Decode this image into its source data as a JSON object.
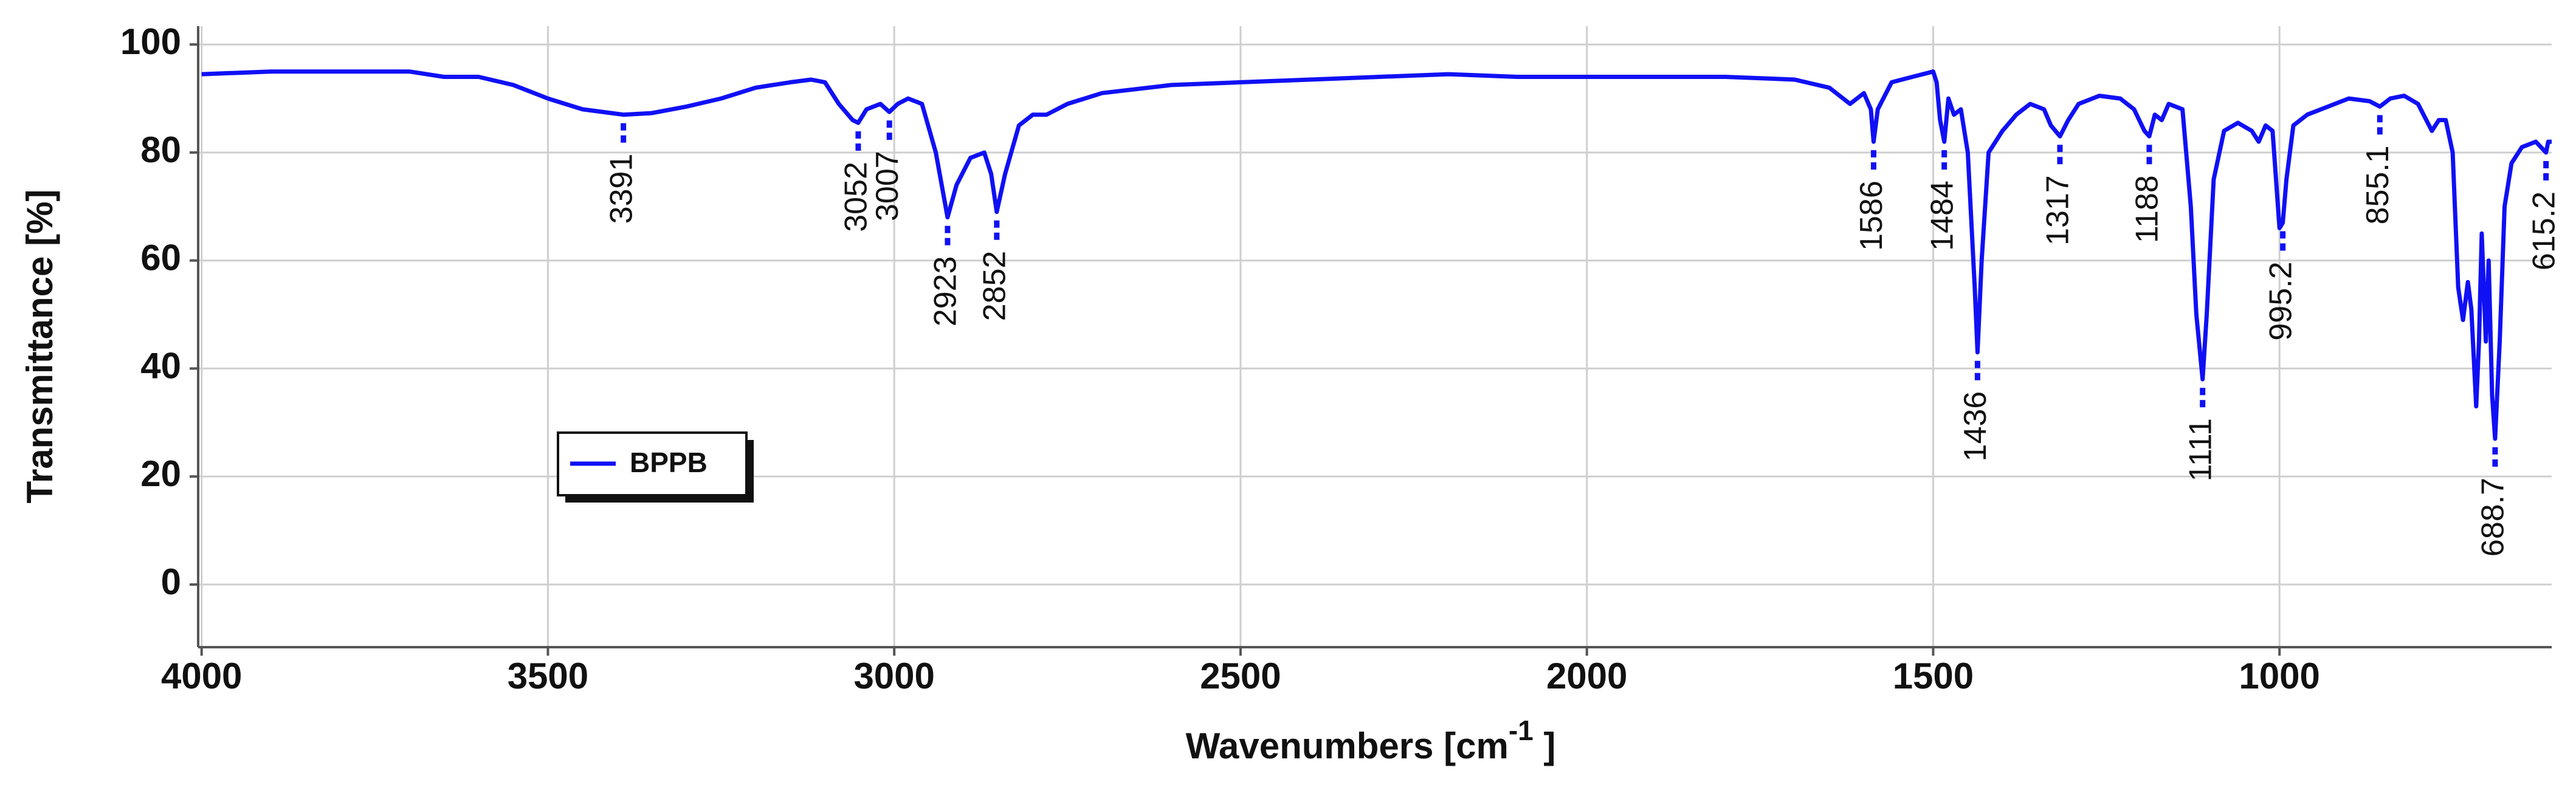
{
  "chart_data": {
    "type": "line",
    "xlabel": {
      "text": "Wavenumbers [cm",
      "sup": "-1",
      "end": " ]"
    },
    "ylabel": "Transmittance [%]",
    "x": [
      4000,
      3900,
      3800,
      3700,
      3650,
      3600,
      3550,
      3500,
      3450,
      3391,
      3350,
      3300,
      3250,
      3200,
      3150,
      3120,
      3100,
      3080,
      3060,
      3052,
      3040,
      3020,
      3007,
      2995,
      2980,
      2960,
      2940,
      2923,
      2910,
      2890,
      2870,
      2860,
      2852,
      2840,
      2820,
      2800,
      2780,
      2750,
      2700,
      2600,
      2500,
      2400,
      2300,
      2200,
      2100,
      2000,
      1900,
      1800,
      1700,
      1650,
      1620,
      1600,
      1590,
      1586,
      1580,
      1560,
      1530,
      1500,
      1495,
      1490,
      1484,
      1478,
      1470,
      1460,
      1450,
      1440,
      1436,
      1430,
      1420,
      1400,
      1380,
      1360,
      1340,
      1330,
      1317,
      1305,
      1290,
      1260,
      1230,
      1210,
      1195,
      1188,
      1180,
      1170,
      1160,
      1140,
      1128,
      1120,
      1111,
      1105,
      1095,
      1080,
      1060,
      1040,
      1030,
      1020,
      1010,
      1000,
      995.2,
      990,
      980,
      960,
      940,
      920,
      900,
      870,
      855.1,
      840,
      820,
      800,
      780,
      770,
      760,
      750,
      742,
      735,
      728,
      723,
      716,
      712,
      708,
      702,
      698,
      693,
      688.7,
      682,
      675,
      665,
      650,
      630,
      615.2,
      612,
      607
    ],
    "series": [
      {
        "name": "BPPB",
        "color": "#1010f5",
        "values": [
          94.5,
          95,
          95,
          95,
          94,
          94,
          92.5,
          90,
          88,
          87,
          87.3,
          88.5,
          90,
          92,
          93,
          93.5,
          93,
          89,
          86,
          85.5,
          88,
          89,
          87.5,
          89,
          90,
          89,
          80,
          68,
          74,
          79,
          80,
          76,
          69,
          76,
          85,
          87,
          87,
          89,
          91,
          92.5,
          93,
          93.5,
          94,
          94.5,
          94,
          94,
          94,
          94,
          93.5,
          92,
          89,
          91,
          88,
          82,
          88,
          93,
          94,
          95,
          93,
          86,
          82,
          90,
          87,
          88,
          80,
          55,
          43,
          60,
          80,
          84,
          87,
          89,
          88,
          85,
          83,
          86,
          89,
          90.5,
          90,
          88,
          84,
          83,
          87,
          86,
          89,
          88,
          70,
          50,
          38,
          50,
          75,
          84,
          85.5,
          84,
          82,
          85,
          84,
          66,
          67,
          75,
          85,
          87,
          88,
          89,
          90,
          89.5,
          88.5,
          90,
          90.5,
          89,
          84,
          86,
          86,
          80,
          55,
          49,
          56,
          51,
          33,
          45,
          65,
          45,
          60,
          35,
          27,
          45,
          70,
          78,
          81,
          82,
          80,
          82,
          82
        ]
      }
    ],
    "annotations": [
      3391,
      3052,
      3007,
      2923,
      2852,
      1586,
      1484,
      1436,
      1317,
      1188,
      1111,
      995.2,
      855.1,
      688.7,
      615.2
    ],
    "xlim": [
      4005,
      607
    ],
    "ylim": [
      -11.6,
      103.4
    ],
    "xticks": [
      4000,
      3500,
      3000,
      2500,
      2000,
      1500,
      1000
    ],
    "yticks": [
      0,
      20,
      40,
      60,
      80,
      100
    ],
    "grid": true
  }
}
